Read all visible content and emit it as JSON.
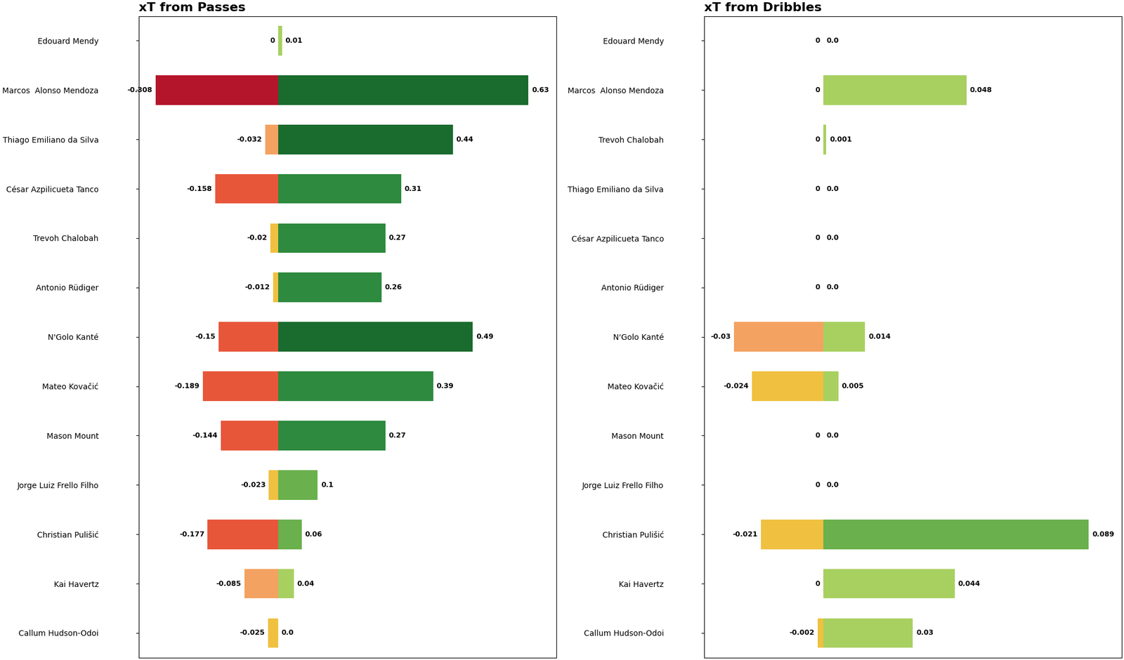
{
  "chart_data": [
    {
      "type": "bar",
      "orientation": "horizontal",
      "title": "xT from Passes",
      "categories": [
        "Edouard Mendy",
        "Marcos  Alonso Mendoza",
        "Thiago Emiliano da Silva",
        "César Azpilicueta Tanco",
        "Trevoh Chalobah",
        "Antonio Rüdiger",
        "N'Golo Kanté",
        "Mateo Kovačić",
        "Mason Mount",
        "Jorge Luiz Frello Filho",
        "Christian Pulišić",
        "Kai Havertz",
        "Callum Hudson-Odoi"
      ],
      "series": [
        {
          "values": [
            0.0,
            -0.308,
            -0.032,
            -0.158,
            -0.02,
            -0.012,
            -0.15,
            -0.189,
            -0.144,
            -0.023,
            -0.177,
            -0.085,
            -0.025
          ],
          "value_labels": [
            "0",
            "-0.308",
            "-0.032",
            "-0.158",
            "-0.02",
            "-0.012",
            "-0.15",
            "-0.189",
            "-0.144",
            "-0.023",
            "-0.177",
            "-0.085",
            "-0.025"
          ],
          "colors": [
            "#f0c040",
            "#b5152b",
            "#f4a261",
            "#e8563a",
            "#f0c040",
            "#f0c040",
            "#e8563a",
            "#e8563a",
            "#e8563a",
            "#f0c040",
            "#e8563a",
            "#f4a261",
            "#f0c040"
          ]
        },
        {
          "values": [
            0.01,
            0.63,
            0.44,
            0.31,
            0.27,
            0.26,
            0.49,
            0.39,
            0.27,
            0.1,
            0.06,
            0.04,
            0.0
          ],
          "value_labels": [
            "0.01",
            "0.63",
            "0.44",
            "0.31",
            "0.27",
            "0.26",
            "0.49",
            "0.39",
            "0.27",
            "0.1",
            "0.06",
            "0.04",
            "0.0"
          ],
          "colors": [
            "#a8d060",
            "#1a6b2e",
            "#1a6b2e",
            "#2d8a3e",
            "#2d8a3e",
            "#2d8a3e",
            "#1a6b2e",
            "#2d8a3e",
            "#2d8a3e",
            "#6ab04c",
            "#6ab04c",
            "#a8d060",
            "#a8d060"
          ]
        }
      ],
      "xlim": [
        -0.35,
        0.7
      ],
      "data_labels": true,
      "tick_labels": "y",
      "grid": false
    },
    {
      "type": "bar",
      "orientation": "horizontal",
      "title": "xT from Dribbles",
      "categories": [
        "Edouard Mendy",
        "Marcos  Alonso Mendoza",
        "Trevoh Chalobah",
        "Thiago Emiliano da Silva",
        "César Azpilicueta Tanco",
        "Antonio Rüdiger",
        "N'Golo Kanté",
        "Mateo Kovačić",
        "Mason Mount",
        "Jorge Luiz Frello Filho",
        "Christian Pulišić",
        "Kai Havertz",
        "Callum Hudson-Odoi"
      ],
      "series": [
        {
          "values": [
            0.0,
            0.0,
            0.0,
            0.0,
            0.0,
            0.0,
            -0.03,
            -0.024,
            0.0,
            0.0,
            -0.021,
            0.0,
            -0.002
          ],
          "value_labels": [
            "0",
            "0",
            "0",
            "0",
            "0",
            "0",
            "-0.03",
            "-0.024",
            "0",
            "0",
            "-0.021",
            "0",
            "-0.002"
          ],
          "colors": [
            "#f0c040",
            "#f0c040",
            "#f0c040",
            "#f0c040",
            "#f0c040",
            "#f0c040",
            "#f4a261",
            "#f0c040",
            "#f0c040",
            "#f0c040",
            "#f0c040",
            "#f0c040",
            "#f0c040"
          ]
        },
        {
          "values": [
            0.0,
            0.048,
            0.001,
            0.0,
            0.0,
            0.0,
            0.014,
            0.005,
            0.0,
            0.0,
            0.089,
            0.044,
            0.03
          ],
          "value_labels": [
            "0.0",
            "0.048",
            "0.001",
            "0.0",
            "0.0",
            "0.0",
            "0.014",
            "0.005",
            "0.0",
            "0.0",
            "0.089",
            "0.044",
            "0.03"
          ],
          "colors": [
            "#a8d060",
            "#a8d060",
            "#a8d060",
            "#a8d060",
            "#a8d060",
            "#a8d060",
            "#a8d060",
            "#a8d060",
            "#a8d060",
            "#a8d060",
            "#6ab04c",
            "#a8d060",
            "#a8d060"
          ]
        }
      ],
      "xlim": [
        -0.04,
        0.1
      ],
      "data_labels": true,
      "tick_labels": "y",
      "grid": false
    }
  ]
}
